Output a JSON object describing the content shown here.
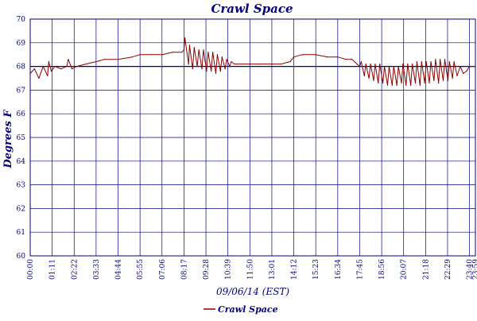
{
  "colors": {
    "grid": "#000080",
    "series": "#8b0000",
    "text": "#000080",
    "background": "#ffffff"
  },
  "chart_data": {
    "type": "line",
    "title": "Crawl Space",
    "xlabel": "09/06/14 (EST)",
    "ylabel": "Degrees F",
    "ylim": [
      60,
      70
    ],
    "xlim": [
      "00:00",
      "23:59"
    ],
    "yticks": [
      "60",
      "61",
      "62",
      "63",
      "64",
      "65",
      "66",
      "67",
      "68",
      "69",
      "70"
    ],
    "xticks": [
      "00:00",
      "01:11",
      "02:22",
      "03:33",
      "04:44",
      "05:55",
      "07:06",
      "08:17",
      "09:28",
      "10:39",
      "11:50",
      "13:01",
      "14:12",
      "15:23",
      "16:34",
      "17:45",
      "18:56",
      "20:07",
      "21:18",
      "22:29",
      "23:40",
      "23:59"
    ],
    "grid": true,
    "legend_position": "bottom",
    "series": [
      {
        "name": "Crawl Space",
        "color": "#8b0000",
        "x": [
          "00:00",
          "00:14",
          "00:28",
          "00:42",
          "00:56",
          "01:00",
          "01:08",
          "01:20",
          "01:40",
          "01:58",
          "02:03",
          "02:15",
          "02:30",
          "03:00",
          "03:33",
          "04:00",
          "04:44",
          "05:30",
          "05:55",
          "06:30",
          "07:06",
          "07:40",
          "08:10",
          "08:17",
          "08:20",
          "08:32",
          "08:35",
          "08:45",
          "08:50",
          "09:00",
          "09:05",
          "09:15",
          "09:20",
          "09:30",
          "09:35",
          "09:45",
          "09:50",
          "10:00",
          "10:05",
          "10:15",
          "10:20",
          "10:30",
          "10:35",
          "10:45",
          "10:50",
          "11:00",
          "11:10",
          "11:50",
          "12:20",
          "13:01",
          "13:30",
          "14:00",
          "14:12",
          "14:40",
          "15:23",
          "16:00",
          "16:34",
          "17:00",
          "17:20",
          "17:45",
          "17:50",
          "18:00",
          "18:05",
          "18:15",
          "18:20",
          "18:30",
          "18:35",
          "18:45",
          "18:50",
          "19:00",
          "19:05",
          "19:15",
          "19:20",
          "19:30",
          "19:35",
          "19:45",
          "19:50",
          "20:00",
          "20:05",
          "20:15",
          "20:20",
          "20:30",
          "20:35",
          "20:45",
          "20:50",
          "21:00",
          "21:05",
          "21:15",
          "21:20",
          "21:30",
          "21:35",
          "21:45",
          "21:50",
          "22:00",
          "22:05",
          "22:15",
          "22:20",
          "22:30",
          "22:35",
          "22:45",
          "22:50",
          "23:00",
          "23:10",
          "23:20",
          "23:30",
          "23:40",
          "23:50",
          "23:59"
        ],
        "values": [
          67.7,
          67.9,
          67.5,
          68.0,
          67.6,
          68.2,
          67.8,
          68.0,
          67.9,
          68.0,
          68.3,
          67.9,
          68.0,
          68.1,
          68.2,
          68.3,
          68.3,
          68.4,
          68.5,
          68.5,
          68.5,
          68.6,
          68.6,
          68.7,
          69.2,
          68.1,
          68.9,
          67.9,
          68.8,
          68.0,
          68.7,
          67.9,
          68.7,
          67.8,
          68.6,
          67.8,
          68.6,
          67.7,
          68.5,
          67.8,
          68.4,
          67.9,
          68.3,
          68.0,
          68.2,
          68.1,
          68.1,
          68.1,
          68.1,
          68.1,
          68.1,
          68.2,
          68.4,
          68.5,
          68.5,
          68.4,
          68.4,
          68.3,
          68.3,
          68.0,
          68.2,
          67.6,
          68.1,
          67.5,
          68.1,
          67.4,
          68.1,
          67.3,
          68.1,
          67.3,
          68.0,
          67.2,
          68.0,
          67.2,
          68.0,
          67.2,
          68.0,
          67.3,
          68.1,
          67.2,
          68.1,
          67.2,
          68.1,
          67.3,
          68.2,
          67.2,
          68.2,
          67.3,
          68.2,
          67.3,
          68.2,
          67.4,
          68.3,
          67.3,
          68.3,
          67.4,
          68.3,
          67.4,
          68.2,
          67.5,
          68.2,
          67.6,
          68.0,
          67.7,
          67.8,
          68.0,
          68.0,
          68.0
        ]
      }
    ]
  }
}
